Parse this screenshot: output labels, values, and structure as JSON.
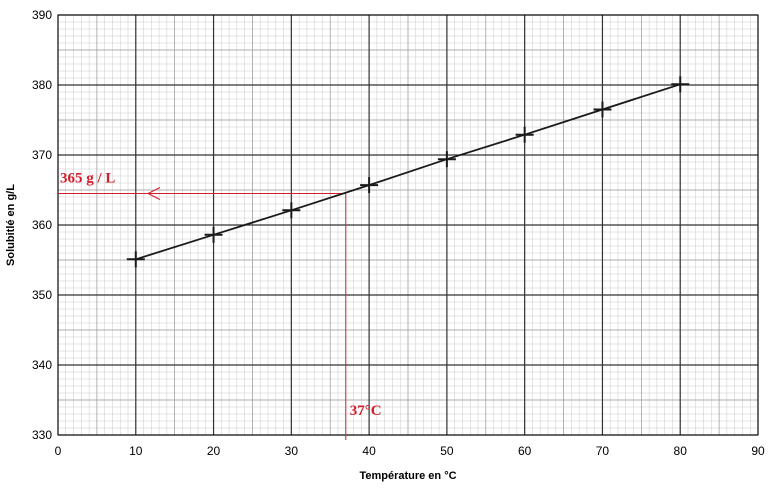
{
  "chart_data": {
    "type": "line",
    "xlabel": "Température en °C",
    "ylabel": "Solubitlé en g/L",
    "xlim": [
      0,
      90
    ],
    "ylim": [
      330,
      390
    ],
    "x_ticks": [
      0,
      10,
      20,
      30,
      40,
      50,
      60,
      70,
      80,
      90
    ],
    "y_ticks": [
      330,
      340,
      350,
      360,
      370,
      380,
      390
    ],
    "grid": true,
    "series": [
      {
        "x": [
          10,
          20,
          30,
          40,
          50,
          60,
          70,
          80
        ],
        "y": [
          355.1,
          358.6,
          362.1,
          365.7,
          369.4,
          372.9,
          376.5,
          380.1
        ],
        "marker": "plus",
        "color": "#1a1a1a"
      }
    ],
    "annotations": [
      {
        "kind": "vertical-line",
        "x": 37,
        "label": "37°C",
        "color": "#d21f2b"
      },
      {
        "kind": "horizontal-arrow",
        "y": 364.5,
        "label": "365 g / L",
        "color": "#d21f2b"
      }
    ]
  }
}
